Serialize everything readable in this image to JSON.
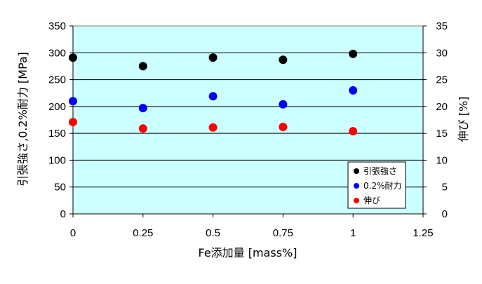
{
  "chart_data": {
    "type": "scatter",
    "xlabel": "Fe添加量 [mass%]",
    "ylabel_left": "引張強さ,0.2%耐力 [MPa]",
    "ylabel_right": "伸び [%]",
    "xlim": [
      0,
      1.25
    ],
    "ylim_left": [
      0,
      350
    ],
    "ylim_right": [
      0,
      35
    ],
    "x_ticks": [
      "0",
      "0.25",
      "0.5",
      "0.75",
      "1",
      "1.25"
    ],
    "y_left_ticks": [
      "0",
      "50",
      "100",
      "150",
      "200",
      "250",
      "300",
      "350"
    ],
    "y_right_ticks": [
      "0",
      "5",
      "10",
      "15",
      "20",
      "25",
      "30",
      "35"
    ],
    "grid": "horizontal",
    "legend_position": "bottom-right",
    "plot_background": "#ccffff",
    "series": [
      {
        "name": "引張強さ",
        "axis": "left",
        "color": "#000000",
        "x": [
          0,
          0.25,
          0.5,
          0.75,
          1
        ],
        "y": [
          291,
          275,
          291,
          287,
          298
        ]
      },
      {
        "name": "0.2%耐力",
        "axis": "left",
        "color": "#0000ff",
        "x": [
          0,
          0.25,
          0.5,
          0.75,
          1
        ],
        "y": [
          210,
          197,
          219,
          204,
          230
        ]
      },
      {
        "name": "伸び",
        "axis": "right",
        "color": "#ff0000",
        "x": [
          0,
          0.25,
          0.5,
          0.75,
          1
        ],
        "y": [
          17.1,
          15.9,
          16.1,
          16.2,
          15.4
        ]
      }
    ]
  }
}
